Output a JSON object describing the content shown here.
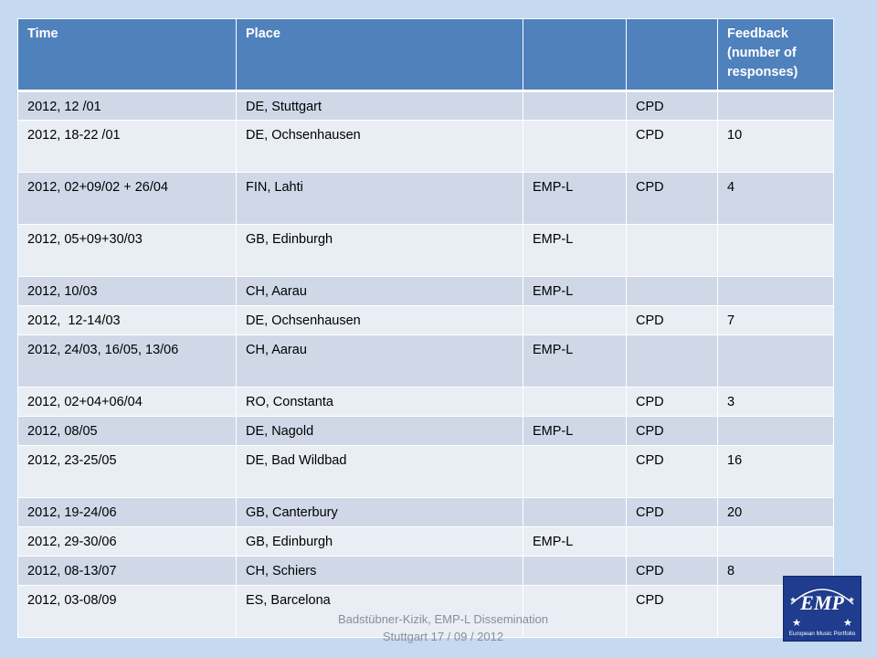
{
  "table": {
    "headers": [
      "Time",
      "Place",
      "",
      "",
      "Feedback\n(number of\nresponses)"
    ],
    "rows": [
      [
        "2012, 12 /01",
        "DE, Stuttgart",
        "",
        "CPD",
        ""
      ],
      [
        "2012, 18-22 /01",
        "DE, Ochsenhausen",
        "",
        "CPD",
        "10"
      ],
      [
        "2012, 02+09/02 + 26/04",
        "FIN, Lahti",
        "EMP-L",
        "CPD",
        "4"
      ],
      [
        "2012, 05+09+30/03",
        "GB, Edinburgh",
        "EMP-L",
        "",
        ""
      ],
      [
        "2012, 10/03",
        "CH, Aarau",
        "EMP-L",
        "",
        ""
      ],
      [
        "2012,  12-14/03",
        "DE, Ochsenhausen",
        "",
        "CPD",
        "7"
      ],
      [
        "2012, 24/03, 16/05, 13/06",
        "CH, Aarau",
        "EMP-L",
        "",
        ""
      ],
      [
        "2012, 02+04+06/04",
        "RO, Constanta",
        "",
        "CPD",
        "3"
      ],
      [
        "2012, 08/05",
        "DE, Nagold",
        "EMP-L",
        "CPD",
        ""
      ],
      [
        "2012, 23-25/05",
        "DE, Bad Wildbad",
        "",
        "CPD",
        "16"
      ],
      [
        "2012, 19-24/06",
        "GB, Canterbury",
        "",
        "CPD",
        "20"
      ],
      [
        "2012, 29-30/06",
        "GB, Edinburgh",
        "EMP-L",
        "",
        ""
      ],
      [
        "2012, 08-13/07",
        "CH, Schiers",
        "",
        "CPD",
        "8"
      ],
      [
        "2012, 03-08/09",
        "ES, Barcelona",
        "",
        "CPD",
        ""
      ]
    ]
  },
  "footer": {
    "line1": "Badstübner-Kizik, EMP-L Dissemination",
    "line2": "Stuttgart 17 / 09 / 2012"
  },
  "logo": {
    "mark": "EMP",
    "caption": "European Music Portfolio"
  },
  "colors": {
    "background": "#c5d9f0",
    "header": "#4f81bd",
    "row_odd": "#d0d8e8",
    "row_even": "#e9edf4",
    "logo_bg": "#1f3c8e"
  }
}
